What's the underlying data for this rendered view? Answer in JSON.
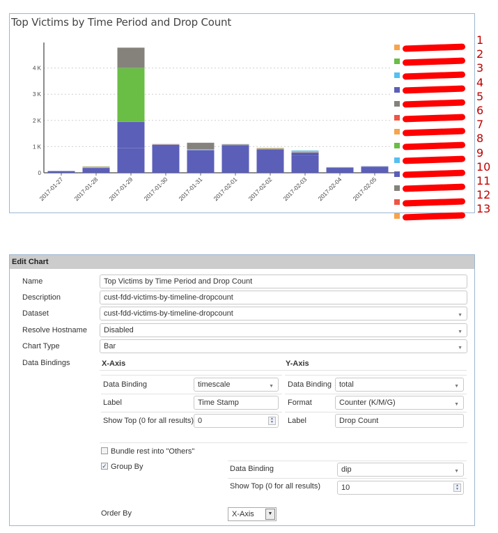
{
  "chart": {
    "title": "Top Victims by Time Period and Drop Count",
    "y_ticks": [
      "0",
      "1 K",
      "2 K",
      "3 K",
      "4 K"
    ],
    "legend": [
      {
        "color": "#f7a44b",
        "label": "[redacted]",
        "annotation": "1"
      },
      {
        "color": "#6abd45",
        "label": "[redacted]",
        "annotation": "2"
      },
      {
        "color": "#55c0f0",
        "label": "[redacted]",
        "annotation": "3"
      },
      {
        "color": "#5b5fb8",
        "label": "[redacted]",
        "annotation": "4"
      },
      {
        "color": "#85827c",
        "label": "[redacted]",
        "annotation": "5"
      },
      {
        "color": "#ee5544",
        "label": "[redacted]",
        "annotation": "6"
      },
      {
        "color": "#f7a44b",
        "label": "[redacted]",
        "annotation": "7"
      },
      {
        "color": "#6abd45",
        "label": "[redacted]",
        "annotation": "8"
      },
      {
        "color": "#55c0f0",
        "label": "[redacted]",
        "annotation": "9"
      },
      {
        "color": "#5b5fb8",
        "label": "[redacted]",
        "annotation": "10"
      },
      {
        "color": "#85827c",
        "label": "[redacted]",
        "annotation": "11"
      },
      {
        "color": "#ee5544",
        "label": "[redacted]",
        "annotation": "12"
      },
      {
        "color": "#f7a44b",
        "label": "[redacted]",
        "annotation": "13"
      }
    ]
  },
  "chart_data": {
    "type": "bar",
    "stacked": true,
    "title": "Top Victims by Time Period and Drop Count",
    "xlabel": "",
    "ylabel": "",
    "ylim": [
      0,
      5000
    ],
    "y_tick_labels": [
      "0",
      "1 K",
      "2 K",
      "3 K",
      "4 K"
    ],
    "grid": "horizontal dotted",
    "legend_position": "right",
    "categories": [
      "2017-01-27",
      "2017-01-28",
      "2017-01-29",
      "2017-01-30",
      "2017-01-31",
      "2017-02-01",
      "2017-02-02",
      "2017-02-03",
      "2017-02-04",
      "2017-02-05"
    ],
    "segments": [
      [
        {
          "color": "#5b5fb8",
          "value": 70
        }
      ],
      [
        {
          "color": "#5b5fb8",
          "value": 190
        },
        {
          "color": "#b5b98a",
          "value": 60
        }
      ],
      [
        {
          "color": "#5b5fb8",
          "value": 940
        },
        {
          "color": "#5b5fb8",
          "value": 1010
        },
        {
          "color": "#6abd45",
          "value": 2050
        },
        {
          "color": "#85827c",
          "value": 780
        }
      ],
      [
        {
          "color": "#5b5fb8",
          "value": 1080
        },
        {
          "color": "#e8c9a0",
          "value": 30
        }
      ],
      [
        {
          "color": "#5b5fb8",
          "value": 870
        },
        {
          "color": "#8fa8d8",
          "value": 30
        },
        {
          "color": "#85827c",
          "value": 250
        }
      ],
      [
        {
          "color": "#5b5fb8",
          "value": 1060
        },
        {
          "color": "#a3a3a8",
          "value": 40
        }
      ],
      [
        {
          "color": "#5b5fb8",
          "value": 900
        },
        {
          "color": "#a9a989",
          "value": 40
        },
        {
          "color": "#e8c9a0",
          "value": 20
        }
      ],
      [
        {
          "color": "#5b5fb8",
          "value": 680
        },
        {
          "color": "#4c50a8",
          "value": 80
        },
        {
          "color": "#8e8c9a",
          "value": 40
        },
        {
          "color": "#86c8e0",
          "value": 60
        }
      ],
      [
        {
          "color": "#5b5fb8",
          "value": 200
        },
        {
          "color": "#a3a3a8",
          "value": 20
        }
      ],
      [
        {
          "color": "#5b5fb8",
          "value": 240
        },
        {
          "color": "#a8b4d8",
          "value": 20
        }
      ]
    ],
    "totals": [
      70,
      250,
      4780,
      1110,
      1150,
      1100,
      960,
      860,
      220,
      260
    ],
    "legend_entries": 13,
    "legend_labels_redacted": true
  },
  "edit_chart": {
    "header": "Edit Chart",
    "labels": {
      "name": "Name",
      "description": "Description",
      "dataset": "Dataset",
      "resolve_hostname": "Resolve Hostname",
      "chart_type": "Chart Type",
      "data_bindings": "Data Bindings"
    },
    "values": {
      "name": "Top Victims by Time Period and Drop Count",
      "description": "cust-fdd-victims-by-timeline-dropcount",
      "dataset": "cust-fdd-victims-by-timeline-dropcount",
      "resolve_hostname": "Disabled",
      "chart_type": "Bar"
    },
    "x_axis": {
      "title": "X-Axis",
      "data_binding_label": "Data Binding",
      "data_binding_value": "timescale",
      "label_label": "Label",
      "label_value": "Time Stamp",
      "show_top_label": "Show Top (0 for all results)",
      "show_top_value": "0"
    },
    "y_axis": {
      "title": "Y-Axis",
      "data_binding_label": "Data Binding",
      "data_binding_value": "total",
      "format_label": "Format",
      "format_value": "Counter (K/M/G)",
      "label_label": "Label",
      "label_value": "Drop Count"
    },
    "bundle_others": {
      "label": "Bundle rest into \"Others\"",
      "checked": false
    },
    "group_by": {
      "label": "Group By",
      "checked": true,
      "data_binding_label": "Data Binding",
      "data_binding_value": "dip",
      "show_top_label": "Show Top (0 for all results)",
      "show_top_value": "10"
    },
    "order_by": {
      "label": "Order By",
      "value": "X-Axis"
    }
  }
}
